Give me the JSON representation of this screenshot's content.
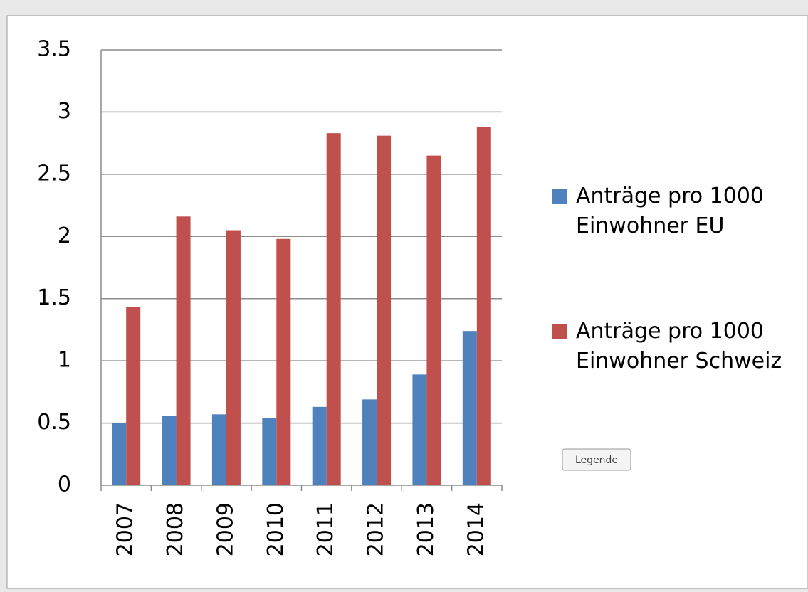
{
  "chart_data": {
    "type": "bar",
    "categories": [
      "2007",
      "2008",
      "2009",
      "2010",
      "2011",
      "2012",
      "2013",
      "2014"
    ],
    "series": [
      {
        "name": "Anträge pro 1000 Einwohner EU",
        "color": "#4f81bd",
        "values": [
          0.5,
          0.56,
          0.57,
          0.54,
          0.63,
          0.69,
          0.89,
          1.24
        ]
      },
      {
        "name": "Anträge pro 1000 Einwohner Schweiz",
        "color": "#c0504d",
        "values": [
          1.43,
          2.16,
          2.05,
          1.98,
          2.83,
          2.81,
          2.65,
          2.88
        ]
      }
    ],
    "ylim": [
      0,
      3.5
    ],
    "yticks": [
      0,
      0.5,
      1,
      1.5,
      2,
      2.5,
      3,
      3.5
    ],
    "grid": true,
    "legend": "right",
    "tooltip": "Legende"
  }
}
